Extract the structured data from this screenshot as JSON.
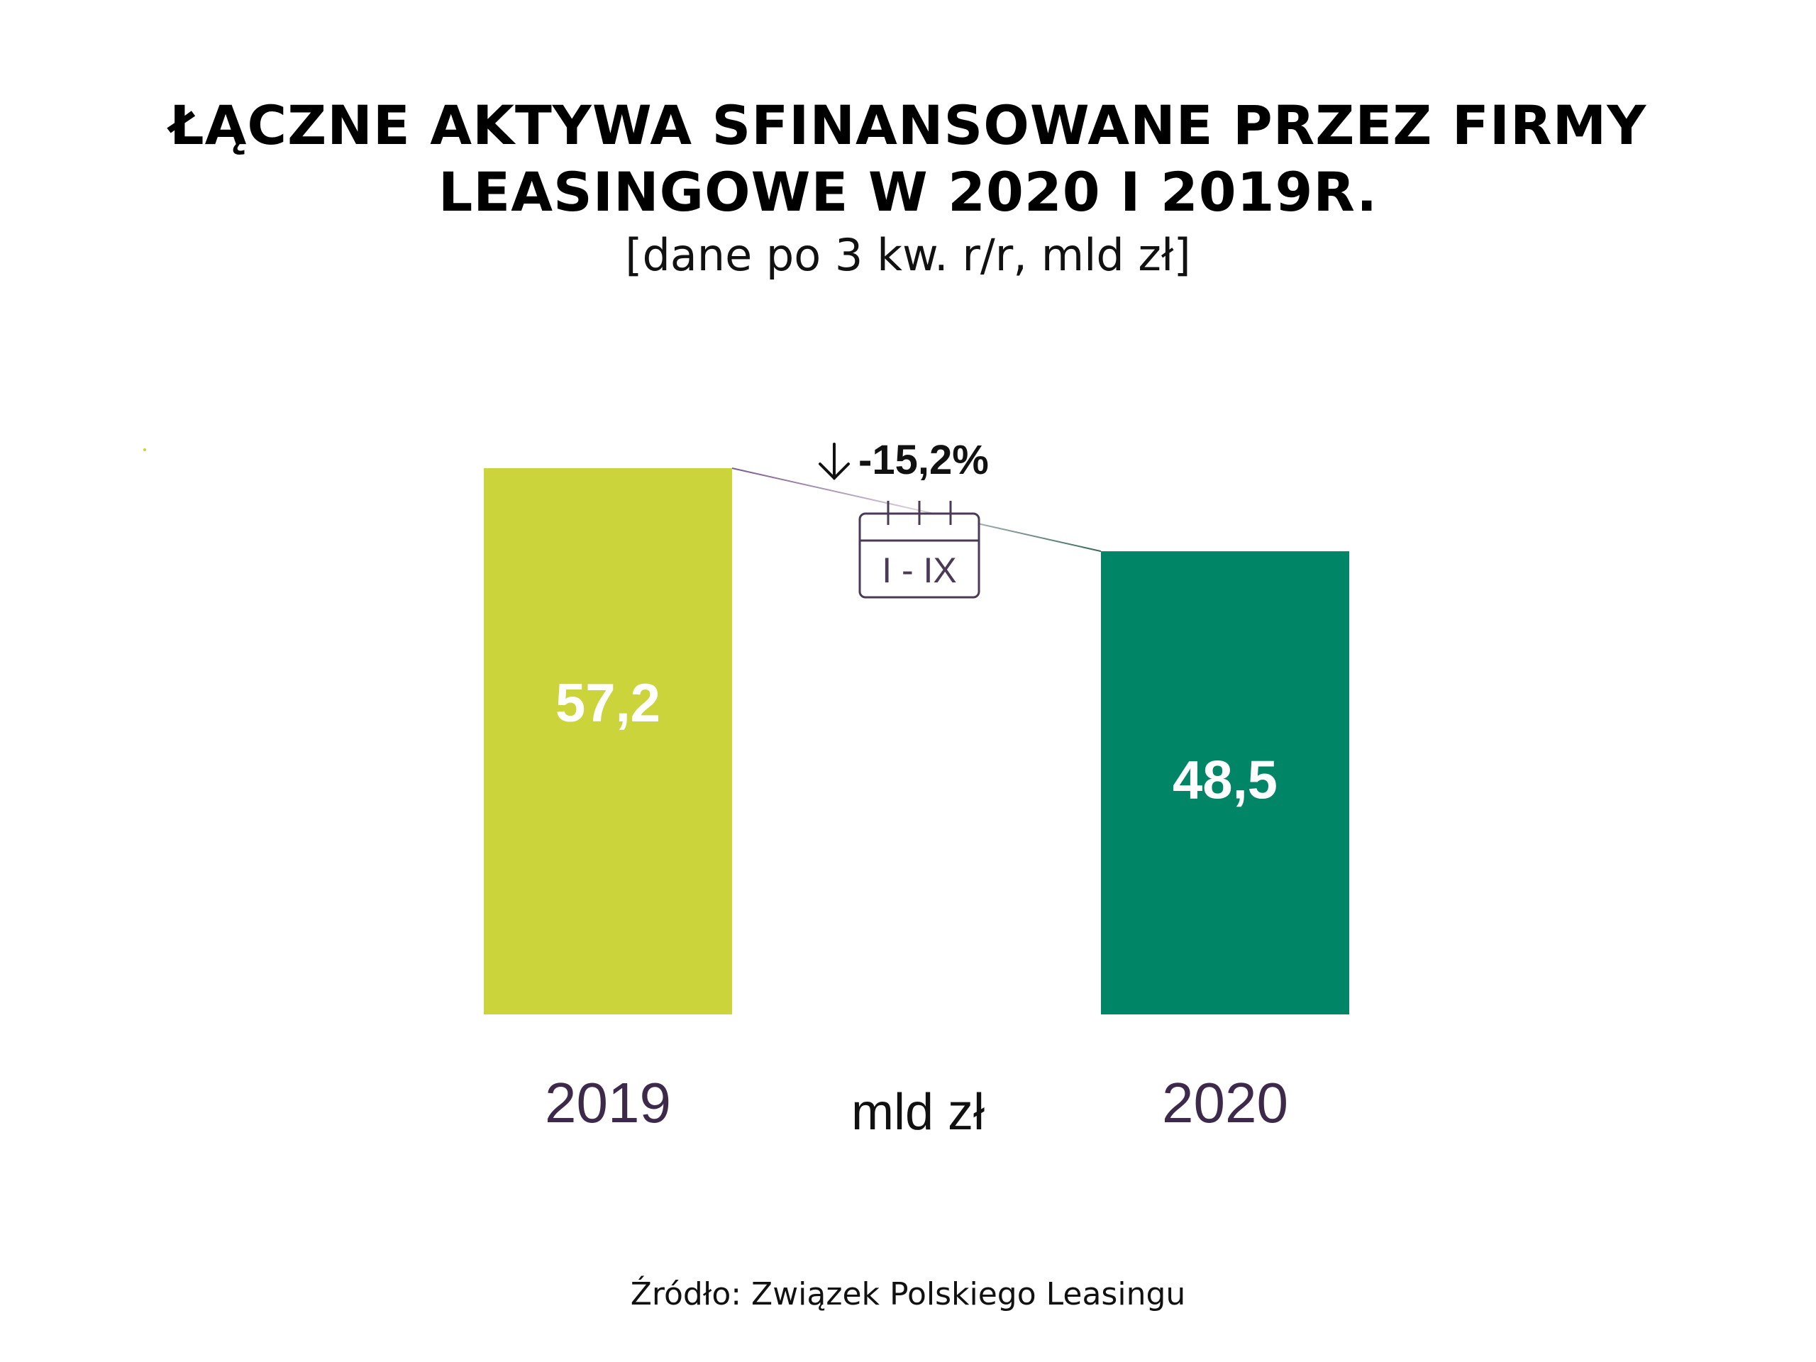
{
  "chart_data": {
    "type": "bar",
    "title": "ŁĄCZNE AKTYWA SFINANSOWANE PRZEZ FIRMY LEASINGOWE W 2020 I 2019R.",
    "title_lines": [
      "ŁĄCZNE AKTYWA SFINANSOWANE PRZEZ FIRMY",
      "LEASINGOWE W 2020 I 2019R."
    ],
    "subtitle": "[dane po 3 kw. r/r, mld zł]",
    "categories": [
      "2019",
      "2020"
    ],
    "values": [
      57.2,
      48.5
    ],
    "value_labels": [
      "57,2",
      "48,5"
    ],
    "colors": [
      "#cbd43b",
      "#008566"
    ],
    "unit_label": "mld zł",
    "change_label": "-15,2%",
    "period_label": "I - IX",
    "ylim": [
      0,
      57.2
    ],
    "grid": false,
    "legend": "none"
  },
  "source": "Źródło: Związek Polskiego Leasingu",
  "icons": {
    "arrow": "arrow-down-icon",
    "calendar": "calendar-icon"
  }
}
